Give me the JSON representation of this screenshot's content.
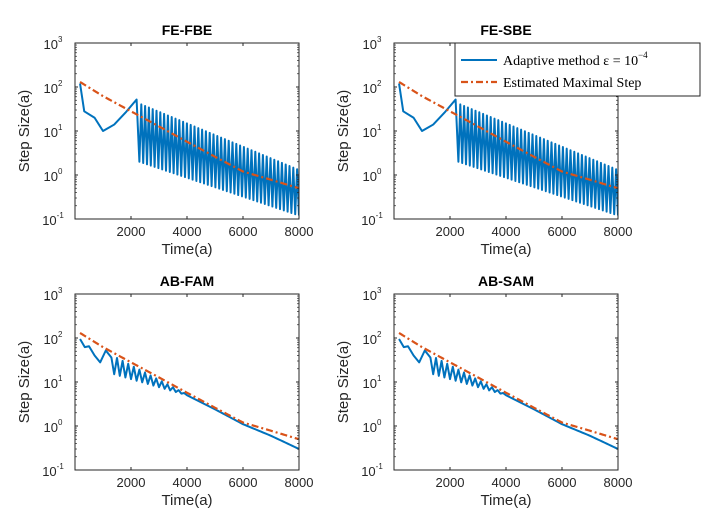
{
  "colors": {
    "adaptive": "#0072bd",
    "estimated": "#d95319",
    "axis": "#262626"
  },
  "legend": {
    "adaptive_label": "Adaptive method ε = 10",
    "adaptive_exponent": "−4",
    "estimated_label": "Estimated Maximal Step"
  },
  "chart_data": [
    {
      "type": "line",
      "title": "FE-FBE",
      "xlabel": "Time(a)",
      "ylabel": "Step Size(a)",
      "xlim": [
        0,
        8000
      ],
      "ylim": [
        0.1,
        1000
      ],
      "yscale": "log",
      "xticks": [
        2000,
        4000,
        6000,
        8000
      ],
      "xtick_labels": [
        "2000",
        "4000",
        "6000",
        "8000"
      ],
      "yticks": [
        0.1,
        1,
        10,
        100,
        1000
      ],
      "ytick_bases": [
        "10",
        "10",
        "10",
        "10",
        "10"
      ],
      "ytick_exponents": [
        "-1",
        "0",
        "1",
        "2",
        "3"
      ],
      "series": [
        {
          "name": "Adaptive method ε = 10^-4",
          "style": "solid",
          "shape": "oscillating",
          "start": {
            "x": 180,
            "y": 120
          },
          "keypoints": [
            [
              180,
              120
            ],
            [
              330,
              28
            ],
            [
              700,
              20
            ],
            [
              1000,
              10
            ],
            [
              1400,
              14
            ],
            [
              1800,
              26
            ],
            [
              2200,
              52
            ],
            [
              2300,
              2
            ]
          ],
          "oscillation": {
            "start_x": 2300,
            "end_x": 8000,
            "upper_start": 42,
            "upper_end": 1.3,
            "lower_start": 2,
            "lower_end": 0.12
          },
          "end": {
            "x": 8000,
            "upper": 1.3,
            "lower": 0.12
          }
        },
        {
          "name": "Estimated Maximal Step",
          "style": "dash-dot",
          "x": [
            180,
            1000,
            2000,
            3000,
            4000,
            5000,
            6000,
            7000,
            8000
          ],
          "y": [
            130,
            62,
            28,
            12.7,
            5.7,
            2.6,
            1.2,
            0.78,
            0.5
          ]
        }
      ]
    },
    {
      "type": "line",
      "title": "FE-SBE",
      "xlabel": "Time(a)",
      "ylabel": "Step Size(a)",
      "xlim": [
        0,
        8000
      ],
      "ylim": [
        0.1,
        1000
      ],
      "yscale": "log",
      "xticks": [
        2000,
        4000,
        6000,
        8000
      ],
      "xtick_labels": [
        "2000",
        "4000",
        "6000",
        "8000"
      ],
      "yticks": [
        0.1,
        1,
        10,
        100,
        1000
      ],
      "ytick_bases": [
        "10",
        "10",
        "10",
        "10",
        "10"
      ],
      "ytick_exponents": [
        "-1",
        "0",
        "1",
        "2",
        "3"
      ],
      "legend_location": "top-right",
      "series": [
        {
          "name": "Adaptive method ε = 10^-4",
          "style": "solid",
          "shape": "oscillating",
          "start": {
            "x": 180,
            "y": 120
          },
          "keypoints": [
            [
              180,
              120
            ],
            [
              330,
              28
            ],
            [
              700,
              20
            ],
            [
              1000,
              10
            ],
            [
              1400,
              14
            ],
            [
              1800,
              26
            ],
            [
              2200,
              52
            ],
            [
              2300,
              2
            ]
          ],
          "oscillation": {
            "start_x": 2300,
            "end_x": 8000,
            "upper_start": 42,
            "upper_end": 1.3,
            "lower_start": 2,
            "lower_end": 0.12
          },
          "end": {
            "x": 8000,
            "upper": 1.3,
            "lower": 0.12
          }
        },
        {
          "name": "Estimated Maximal Step",
          "style": "dash-dot",
          "x": [
            180,
            1000,
            2000,
            3000,
            4000,
            5000,
            6000,
            7000,
            8000
          ],
          "y": [
            130,
            62,
            28,
            12.7,
            5.7,
            2.6,
            1.2,
            0.78,
            0.5
          ]
        }
      ]
    },
    {
      "type": "line",
      "title": "AB-FAM",
      "xlabel": "Time(a)",
      "ylabel": "Step Size(a)",
      "xlim": [
        0,
        8000
      ],
      "ylim": [
        0.1,
        1000
      ],
      "yscale": "log",
      "xticks": [
        2000,
        4000,
        6000,
        8000
      ],
      "xtick_labels": [
        "2000",
        "4000",
        "6000",
        "8000"
      ],
      "yticks": [
        0.1,
        1,
        10,
        100,
        1000
      ],
      "ytick_bases": [
        "10",
        "10",
        "10",
        "10",
        "10"
      ],
      "ytick_exponents": [
        "-1",
        "0",
        "1",
        "2",
        "3"
      ],
      "series": [
        {
          "name": "Adaptive method ε = 10^-4",
          "style": "solid",
          "shape": "damped-oscillation",
          "keypoints": [
            [
              180,
              95
            ],
            [
              350,
              62
            ],
            [
              500,
              65
            ],
            [
              700,
              40
            ],
            [
              900,
              28
            ],
            [
              1100,
              52
            ],
            [
              1300,
              36
            ],
            [
              1400,
              15
            ]
          ],
          "oscillation": {
            "start_x": 1400,
            "end_x": 4000,
            "upper_start": 38,
            "upper_end": 5.2,
            "lower_start": 15,
            "lower_end": 5.0
          },
          "x": [
            4000,
            5000,
            6000,
            7000,
            8000
          ],
          "y": [
            5.0,
            2.4,
            1.1,
            0.6,
            0.3
          ]
        },
        {
          "name": "Estimated Maximal Step",
          "style": "dash-dot",
          "x": [
            180,
            1000,
            2000,
            3000,
            4000,
            5000,
            6000,
            7000,
            8000
          ],
          "y": [
            130,
            62,
            28,
            12.7,
            5.7,
            2.6,
            1.2,
            0.78,
            0.5
          ]
        }
      ]
    },
    {
      "type": "line",
      "title": "AB-SAM",
      "xlabel": "Time(a)",
      "ylabel": "Step Size(a)",
      "xlim": [
        0,
        8000
      ],
      "ylim": [
        0.1,
        1000
      ],
      "yscale": "log",
      "xticks": [
        2000,
        4000,
        6000,
        8000
      ],
      "xtick_labels": [
        "2000",
        "4000",
        "6000",
        "8000"
      ],
      "yticks": [
        0.1,
        1,
        10,
        100,
        1000
      ],
      "ytick_bases": [
        "10",
        "10",
        "10",
        "10",
        "10"
      ],
      "ytick_exponents": [
        "-1",
        "0",
        "1",
        "2",
        "3"
      ],
      "series": [
        {
          "name": "Adaptive method ε = 10^-4",
          "style": "solid",
          "shape": "damped-oscillation",
          "keypoints": [
            [
              180,
              95
            ],
            [
              350,
              62
            ],
            [
              500,
              65
            ],
            [
              700,
              40
            ],
            [
              900,
              28
            ],
            [
              1100,
              52
            ],
            [
              1300,
              36
            ],
            [
              1400,
              15
            ]
          ],
          "oscillation": {
            "start_x": 1400,
            "end_x": 4000,
            "upper_start": 38,
            "upper_end": 5.2,
            "lower_start": 15,
            "lower_end": 5.0
          },
          "x": [
            4000,
            5000,
            6000,
            7000,
            8000
          ],
          "y": [
            5.0,
            2.4,
            1.1,
            0.6,
            0.3
          ]
        },
        {
          "name": "Estimated Maximal Step",
          "style": "dash-dot",
          "x": [
            180,
            1000,
            2000,
            3000,
            4000,
            5000,
            6000,
            7000,
            8000
          ],
          "y": [
            130,
            62,
            28,
            12.7,
            5.7,
            2.6,
            1.2,
            0.78,
            0.5
          ]
        }
      ]
    }
  ]
}
